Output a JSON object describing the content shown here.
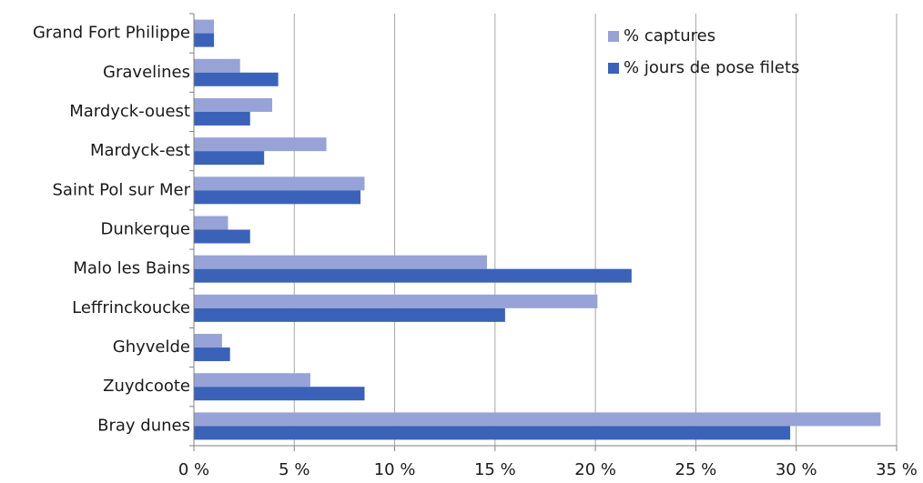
{
  "chart_data": {
    "type": "bar",
    "orientation": "horizontal",
    "categories": [
      "Grand Fort Philippe",
      "Gravelines",
      "Mardyck-ouest",
      "Mardyck-est",
      "Saint Pol sur Mer",
      "Dunkerque",
      "Malo les Bains",
      "Leffrinckoucke",
      "Ghyvelde",
      "Zuydcoote",
      "Bray dunes"
    ],
    "series": [
      {
        "name": "% captures",
        "color": "#97a3d6",
        "values": [
          1.0,
          2.3,
          3.9,
          6.6,
          8.5,
          1.7,
          14.6,
          20.1,
          1.4,
          5.8,
          34.2
        ]
      },
      {
        "name": "% jours de pose filets",
        "color": "#3a62b8",
        "values": [
          1.0,
          4.2,
          2.8,
          3.5,
          8.3,
          2.8,
          21.8,
          15.5,
          1.8,
          8.5,
          29.7
        ]
      }
    ],
    "xlim": [
      0,
      35
    ],
    "xticks": [
      {
        "value": 0,
        "label": "0 %"
      },
      {
        "value": 5,
        "label": "5 %"
      },
      {
        "value": 10,
        "label": "10 %"
      },
      {
        "value": 15,
        "label": "15 %"
      },
      {
        "value": 20,
        "label": "20 %"
      },
      {
        "value": 25,
        "label": "25 %"
      },
      {
        "value": 30,
        "label": "30 %"
      },
      {
        "value": 35,
        "label": "35 %"
      }
    ],
    "grid": true,
    "legend": "top-right"
  }
}
